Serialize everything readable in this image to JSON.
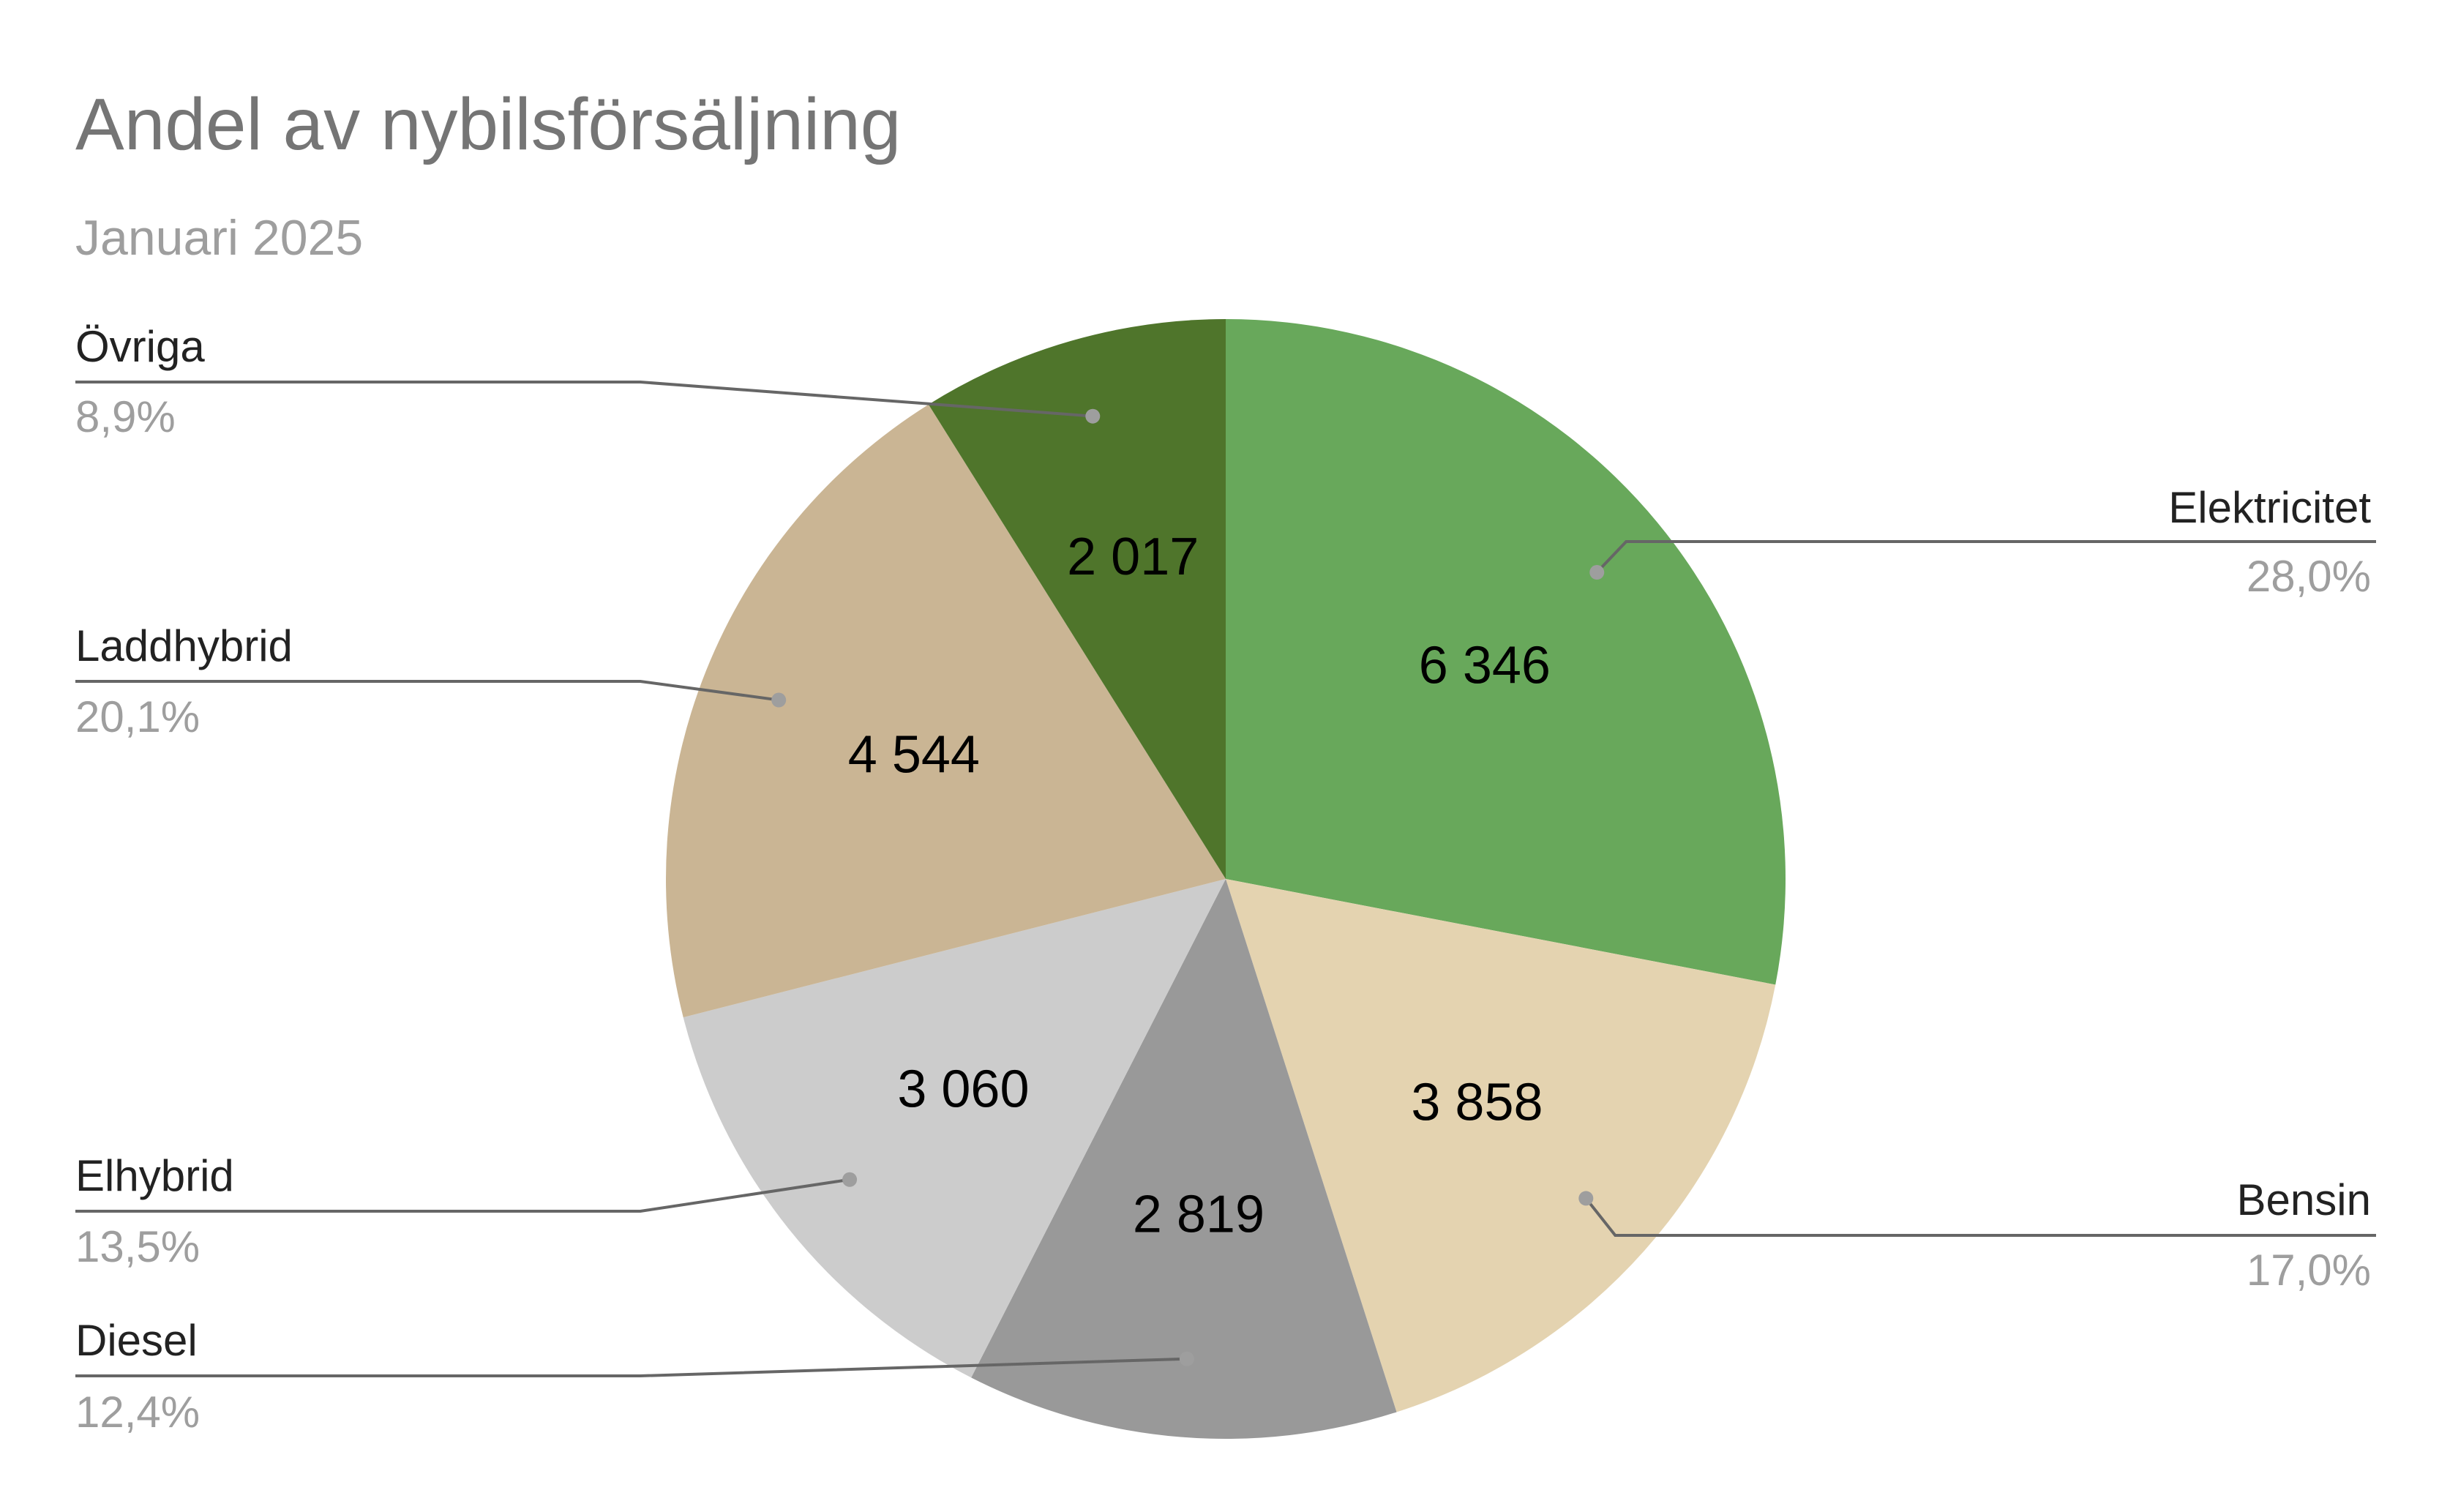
{
  "chart_data": {
    "type": "pie",
    "title": "Andel av nybilsförsäljning",
    "subtitle": "Januari 2025",
    "slices": [
      {
        "label": "Elektricitet",
        "value": 6346,
        "value_label": "6 346",
        "percent_label": "28,0%",
        "color": "#68a85b"
      },
      {
        "label": "Bensin",
        "value": 3858,
        "value_label": "3 858",
        "percent_label": "17,0%",
        "color": "#e4d3b0"
      },
      {
        "label": "Diesel",
        "value": 2819,
        "value_label": "2 819",
        "percent_label": "12,4%",
        "color": "#999999"
      },
      {
        "label": "Elhybrid",
        "value": 3060,
        "value_label": "3 060",
        "percent_label": "13,5%",
        "color": "#cccccc"
      },
      {
        "label": "Laddhybrid",
        "value": 4544,
        "value_label": "4 544",
        "percent_label": "20,1%",
        "color": "#cab594"
      },
      {
        "label": "Övriga",
        "value": 2017,
        "value_label": "2 017",
        "percent_label": "8,9%",
        "color": "#4f752b"
      }
    ]
  },
  "colors": {
    "title": "#757575",
    "subtitle": "#9e9e9e",
    "value_text": "#000000",
    "callout_name": "#222222",
    "callout_pct": "#9e9e9e",
    "leader_line": "#666666",
    "leader_dot": "#9e9e9e"
  }
}
